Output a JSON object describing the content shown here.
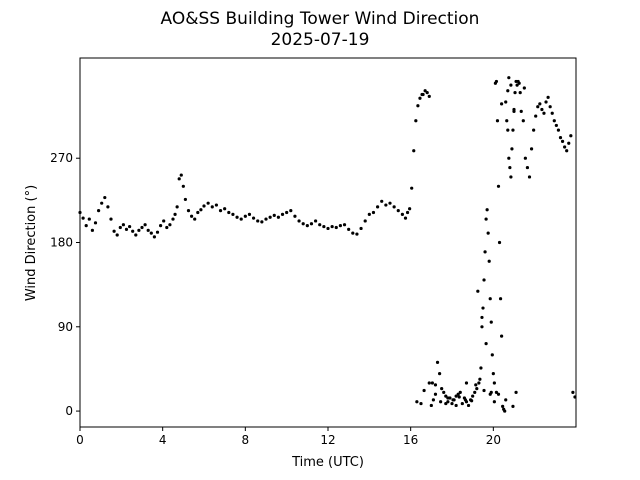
{
  "chart_data": {
    "type": "scatter",
    "title": "AO&SS Building Tower Wind Direction",
    "subtitle": "2025-07-19",
    "xlabel": "Time (UTC)",
    "ylabel": "Wind Direction (°)",
    "xlim": [
      0,
      24
    ],
    "ylim": [
      -17,
      377
    ],
    "xticks": [
      0,
      4,
      8,
      12,
      16,
      20
    ],
    "yticks": [
      0,
      90,
      180,
      270
    ],
    "grid": false,
    "marker_color": "#000000",
    "series": [
      {
        "x": [
          0,
          0.15,
          0.3,
          0.45,
          0.6,
          0.75,
          0.9,
          1.05,
          1.2,
          1.35,
          1.5,
          1.65,
          1.8,
          1.95,
          2.1,
          2.25,
          2.4,
          2.55,
          2.7,
          2.85,
          3.0,
          3.15,
          3.3,
          3.45,
          3.6,
          3.75,
          3.9,
          4.05,
          4.2,
          4.35,
          4.5,
          4.6,
          4.7,
          4.8,
          4.9,
          5.0,
          5.1,
          5.25,
          5.4,
          5.55,
          5.7,
          5.85,
          6.0,
          6.2,
          6.4,
          6.6,
          6.8,
          7.0,
          7.2,
          7.4,
          7.6,
          7.8,
          8.0,
          8.2,
          8.4,
          8.6,
          8.8,
          9.0,
          9.2,
          9.4,
          9.6,
          9.8,
          10.0,
          10.2,
          10.4,
          10.6,
          10.8,
          11.0,
          11.2,
          11.4,
          11.6,
          11.8,
          12.0,
          12.2,
          12.4,
          12.6,
          12.8,
          13.0,
          13.2,
          13.4,
          13.6,
          13.8,
          14.0,
          14.2,
          14.4,
          14.6,
          14.8,
          15.0,
          15.2,
          15.4,
          15.6,
          15.75,
          15.85,
          15.95,
          16.05,
          16.15,
          16.25,
          16.35,
          16.45,
          16.6,
          16.7,
          16.8,
          16.9,
          17.0,
          17.1,
          17.2,
          17.3,
          17.4,
          17.5,
          17.6,
          17.7,
          17.8,
          17.9,
          18.0,
          18.1,
          18.2,
          18.3,
          18.4,
          18.5,
          18.6,
          18.7,
          18.8,
          18.9,
          19.0,
          19.1,
          19.2,
          19.3,
          19.35,
          19.4,
          19.45,
          19.5,
          19.55,
          19.6,
          19.65,
          19.7,
          19.75,
          19.8,
          19.85,
          19.9,
          19.95,
          20.0,
          20.05,
          20.1,
          20.15,
          20.2,
          20.25,
          20.3,
          20.35,
          20.4,
          20.45,
          20.5,
          20.55,
          20.6,
          20.65,
          20.7,
          20.75,
          20.8,
          20.85,
          20.9,
          20.95,
          21.0,
          21.05,
          21.1,
          21.15,
          21.2,
          21.25,
          21.3,
          21.35,
          21.45,
          21.55,
          21.65,
          21.75,
          21.85,
          21.95,
          22.05,
          22.15,
          22.25,
          22.35,
          22.45,
          22.55,
          22.65,
          22.75,
          22.85,
          22.95,
          23.05,
          23.15,
          23.25,
          23.35,
          23.45,
          23.55,
          23.65,
          23.75,
          23.85,
          23.95,
          16.3,
          16.5,
          17.05,
          17.8,
          18.2,
          18.7,
          19.15,
          19.55,
          19.9,
          20.25,
          20.6,
          20.95,
          21.5,
          16.55,
          16.65,
          16.9,
          17.2,
          17.45,
          17.7,
          18.05,
          18.35,
          18.65,
          18.95,
          19.25,
          19.45,
          19.65,
          19.85,
          20.05,
          20.15,
          20.4,
          20.7,
          20.75,
          20.85,
          21.0,
          21.1
        ],
        "y": [
          212,
          206,
          198,
          205,
          193,
          201,
          214,
          222,
          228,
          218,
          205,
          192,
          188,
          196,
          199,
          194,
          197,
          192,
          188,
          193,
          196,
          199,
          193,
          190,
          186,
          191,
          198,
          203,
          196,
          199,
          205,
          210,
          218,
          248,
          252,
          240,
          226,
          214,
          208,
          205,
          212,
          215,
          219,
          222,
          218,
          220,
          214,
          216,
          212,
          210,
          207,
          205,
          208,
          210,
          206,
          203,
          202,
          205,
          207,
          209,
          207,
          210,
          212,
          214,
          208,
          203,
          200,
          198,
          200,
          203,
          199,
          197,
          195,
          197,
          196,
          198,
          199,
          194,
          190,
          189,
          195,
          203,
          210,
          212,
          218,
          224,
          220,
          222,
          218,
          214,
          210,
          206,
          212,
          216,
          238,
          278,
          310,
          326,
          334,
          338,
          342,
          340,
          336,
          6,
          12,
          28,
          52,
          40,
          24,
          20,
          16,
          10,
          14,
          8,
          12,
          16,
          18,
          20,
          8,
          14,
          10,
          6,
          12,
          16,
          20,
          24,
          30,
          34,
          46,
          90,
          110,
          140,
          170,
          205,
          215,
          190,
          160,
          120,
          95,
          60,
          40,
          30,
          350,
          20,
          310,
          240,
          180,
          120,
          80,
          5,
          2,
          0,
          330,
          310,
          300,
          270,
          260,
          250,
          280,
          300,
          320,
          340,
          352,
          348,
          352,
          350,
          340,
          320,
          310,
          270,
          260,
          250,
          280,
          300,
          315,
          325,
          328,
          322,
          318,
          330,
          335,
          325,
          318,
          310,
          305,
          300,
          292,
          288,
          282,
          278,
          286,
          294,
          20,
          15,
          10,
          8,
          30,
          14,
          6,
          30,
          28,
          22,
          20,
          18,
          12,
          5,
          345,
          338,
          22,
          30,
          18,
          10,
          8,
          12,
          15,
          12,
          11,
          128,
          100,
          72,
          18,
          10,
          352,
          328,
          342,
          356,
          348,
          322,
          20
        ]
      }
    ]
  }
}
